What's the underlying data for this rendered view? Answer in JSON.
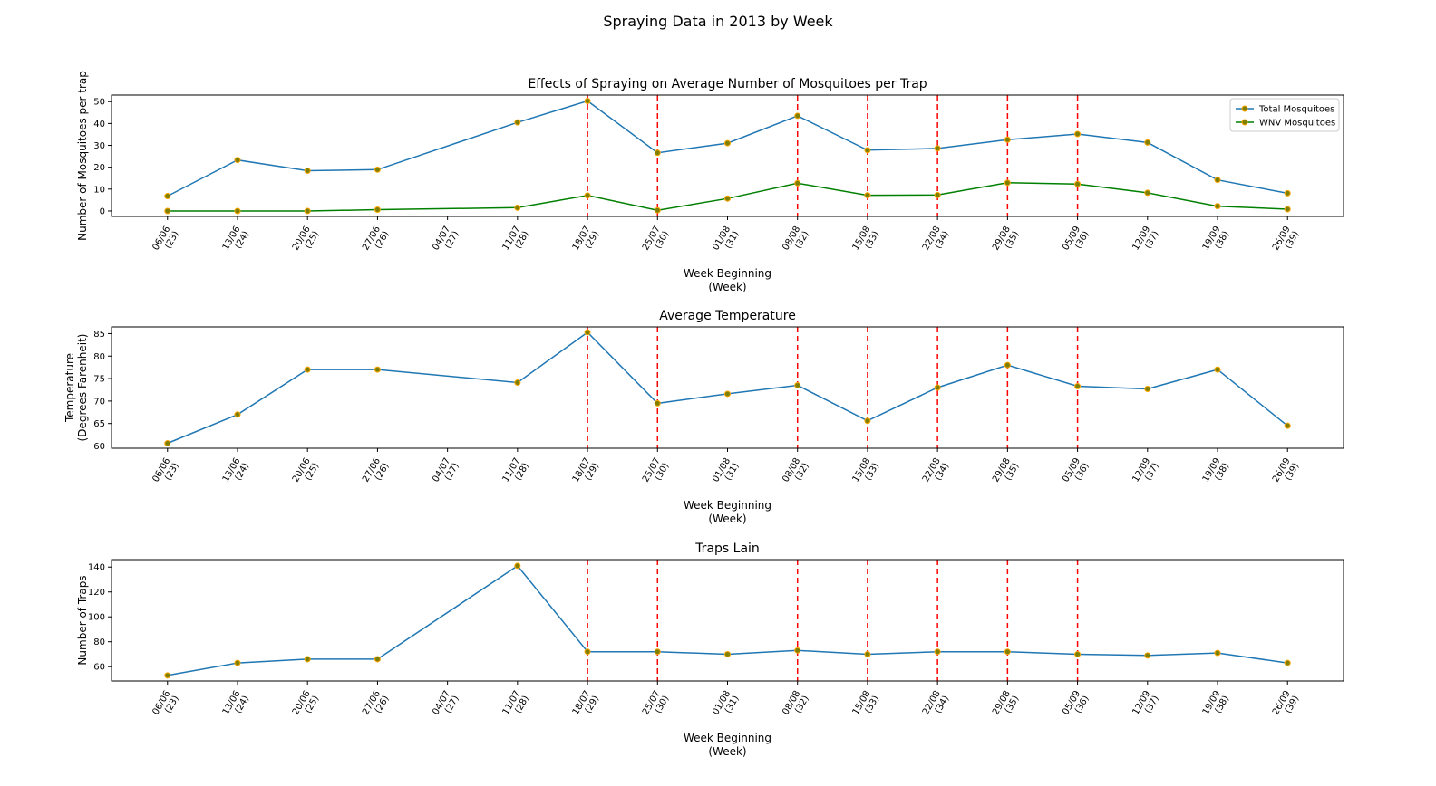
{
  "figure": {
    "title": "Spraying Data in 2013 by Week"
  },
  "x_ticks": [
    [
      "06/06",
      "(23)"
    ],
    [
      "13/06",
      "(24)"
    ],
    [
      "20/06",
      "(25)"
    ],
    [
      "27/06",
      "(26)"
    ],
    [
      "04/07",
      "(27)"
    ],
    [
      "11/07",
      "(28)"
    ],
    [
      "18/07",
      "(29)"
    ],
    [
      "25/07",
      "(30)"
    ],
    [
      "01/08",
      "(31)"
    ],
    [
      "08/08",
      "(32)"
    ],
    [
      "15/08",
      "(33)"
    ],
    [
      "22/08",
      "(34)"
    ],
    [
      "29/08",
      "(35)"
    ],
    [
      "05/09",
      "(36)"
    ],
    [
      "12/09",
      "(37)"
    ],
    [
      "19/09",
      "(38)"
    ],
    [
      "26/09",
      "(39)"
    ]
  ],
  "colors": {
    "series1": "#1f77b4",
    "series2": "#008000",
    "marker_face": "#808000",
    "marker_edge": "#ffa500",
    "spray_line": "#ff0000"
  },
  "chart_data": [
    {
      "type": "line",
      "title": "Effects of Spraying on Average Number of Mosquitoes per Trap",
      "xlabel": [
        "Week Beginning",
        "(Week)"
      ],
      "ylabel": [
        "Number of Mosquitoes per trap"
      ],
      "x": [
        23,
        24,
        25,
        26,
        28,
        29,
        30,
        31,
        32,
        33,
        34,
        35,
        36,
        37,
        38,
        39
      ],
      "ylim": [
        -2.5,
        53
      ],
      "yticks": [
        0,
        10,
        20,
        30,
        40,
        50
      ],
      "spray_weeks": [
        29,
        30,
        32,
        33,
        34,
        35,
        36
      ],
      "legend": "top-right",
      "series": [
        {
          "name": "Total Mosquitoes",
          "values": [
            6.8,
            23.3,
            18.4,
            18.9,
            40.5,
            50.3,
            26.6,
            31.0,
            43.5,
            27.8,
            28.6,
            32.6,
            35.2,
            31.3,
            14.2,
            8.1
          ]
        },
        {
          "name": "WNV Mosquitoes",
          "values": [
            0.0,
            0.0,
            0.0,
            0.6,
            1.5,
            7.1,
            0.3,
            5.7,
            12.7,
            7.2,
            7.3,
            12.9,
            12.3,
            8.3,
            2.2,
            0.8
          ]
        }
      ]
    },
    {
      "type": "line",
      "title": "Average Temperature",
      "xlabel": [
        "Week Beginning",
        "(Week)"
      ],
      "ylabel": [
        "Temperature",
        "(Degrees Farenheit)"
      ],
      "x": [
        23,
        24,
        25,
        26,
        28,
        29,
        30,
        31,
        32,
        33,
        34,
        35,
        36,
        37,
        38,
        39
      ],
      "ylim": [
        59.5,
        86.5
      ],
      "yticks": [
        60,
        65,
        70,
        75,
        80,
        85
      ],
      "spray_weeks": [
        29,
        30,
        32,
        33,
        34,
        35,
        36
      ],
      "series": [
        {
          "values": [
            60.6,
            67.0,
            77.0,
            77.0,
            74.1,
            85.3,
            69.5,
            71.6,
            73.5,
            65.6,
            73.0,
            78.0,
            73.3,
            72.7,
            77.0,
            64.5
          ]
        }
      ]
    },
    {
      "type": "line",
      "title": "Traps Lain",
      "xlabel": [
        "Week Beginning",
        "(Week)"
      ],
      "ylabel": [
        "Number of Traps"
      ],
      "x": [
        23,
        24,
        25,
        26,
        28,
        29,
        30,
        31,
        32,
        33,
        34,
        35,
        36,
        37,
        38,
        39
      ],
      "ylim": [
        48.5,
        146
      ],
      "yticks": [
        60,
        80,
        100,
        120,
        140
      ],
      "spray_weeks": [
        29,
        30,
        32,
        33,
        34,
        35,
        36
      ],
      "series": [
        {
          "values": [
            53,
            63,
            66,
            66,
            141,
            72,
            72,
            70,
            73,
            70,
            72,
            72,
            70,
            69,
            71,
            63
          ]
        }
      ]
    }
  ]
}
